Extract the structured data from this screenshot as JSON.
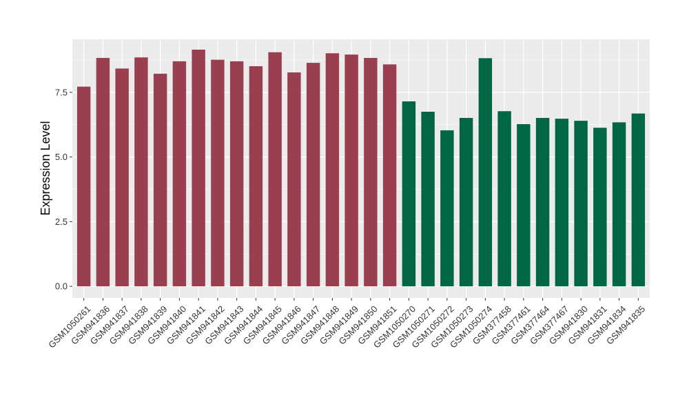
{
  "chart_data": {
    "type": "bar",
    "title": "",
    "xlabel": "",
    "ylabel": "Expression Level",
    "ylim": [
      -0.45,
      9.55
    ],
    "yticks": [
      "0.0",
      "2.5",
      "5.0",
      "7.5"
    ],
    "ytick_values": [
      0,
      2.5,
      5.0,
      7.5
    ],
    "grid": true,
    "legend": "none",
    "categories": [
      "GSM1050261",
      "GSM941836",
      "GSM941837",
      "GSM941838",
      "GSM941839",
      "GSM941840",
      "GSM941841",
      "GSM941842",
      "GSM941843",
      "GSM941844",
      "GSM941845",
      "GSM941846",
      "GSM941847",
      "GSM941848",
      "GSM941849",
      "GSM941850",
      "GSM941851",
      "GSM1050270",
      "GSM1050271",
      "GSM1050272",
      "GSM1050273",
      "GSM1050274",
      "GSM377458",
      "GSM377461",
      "GSM377464",
      "GSM377467",
      "GSM941830",
      "GSM941831",
      "GSM941834",
      "GSM941835"
    ],
    "values": [
      7.72,
      8.83,
      8.42,
      8.85,
      8.22,
      8.7,
      9.15,
      8.76,
      8.7,
      8.51,
      9.05,
      8.27,
      8.64,
      9.01,
      8.96,
      8.83,
      8.58,
      7.15,
      6.75,
      6.03,
      6.51,
      8.82,
      6.77,
      6.27,
      6.51,
      6.48,
      6.4,
      6.13,
      6.34,
      6.68
    ],
    "groups": [
      0,
      0,
      0,
      0,
      0,
      0,
      0,
      0,
      0,
      0,
      0,
      0,
      0,
      0,
      0,
      0,
      0,
      1,
      1,
      1,
      1,
      1,
      1,
      1,
      1,
      1,
      1,
      1,
      1,
      1
    ],
    "colors": [
      "#9a3f4f",
      "#006644"
    ],
    "panel_background": "#ebebeb",
    "grid_color": "#ffffff"
  }
}
